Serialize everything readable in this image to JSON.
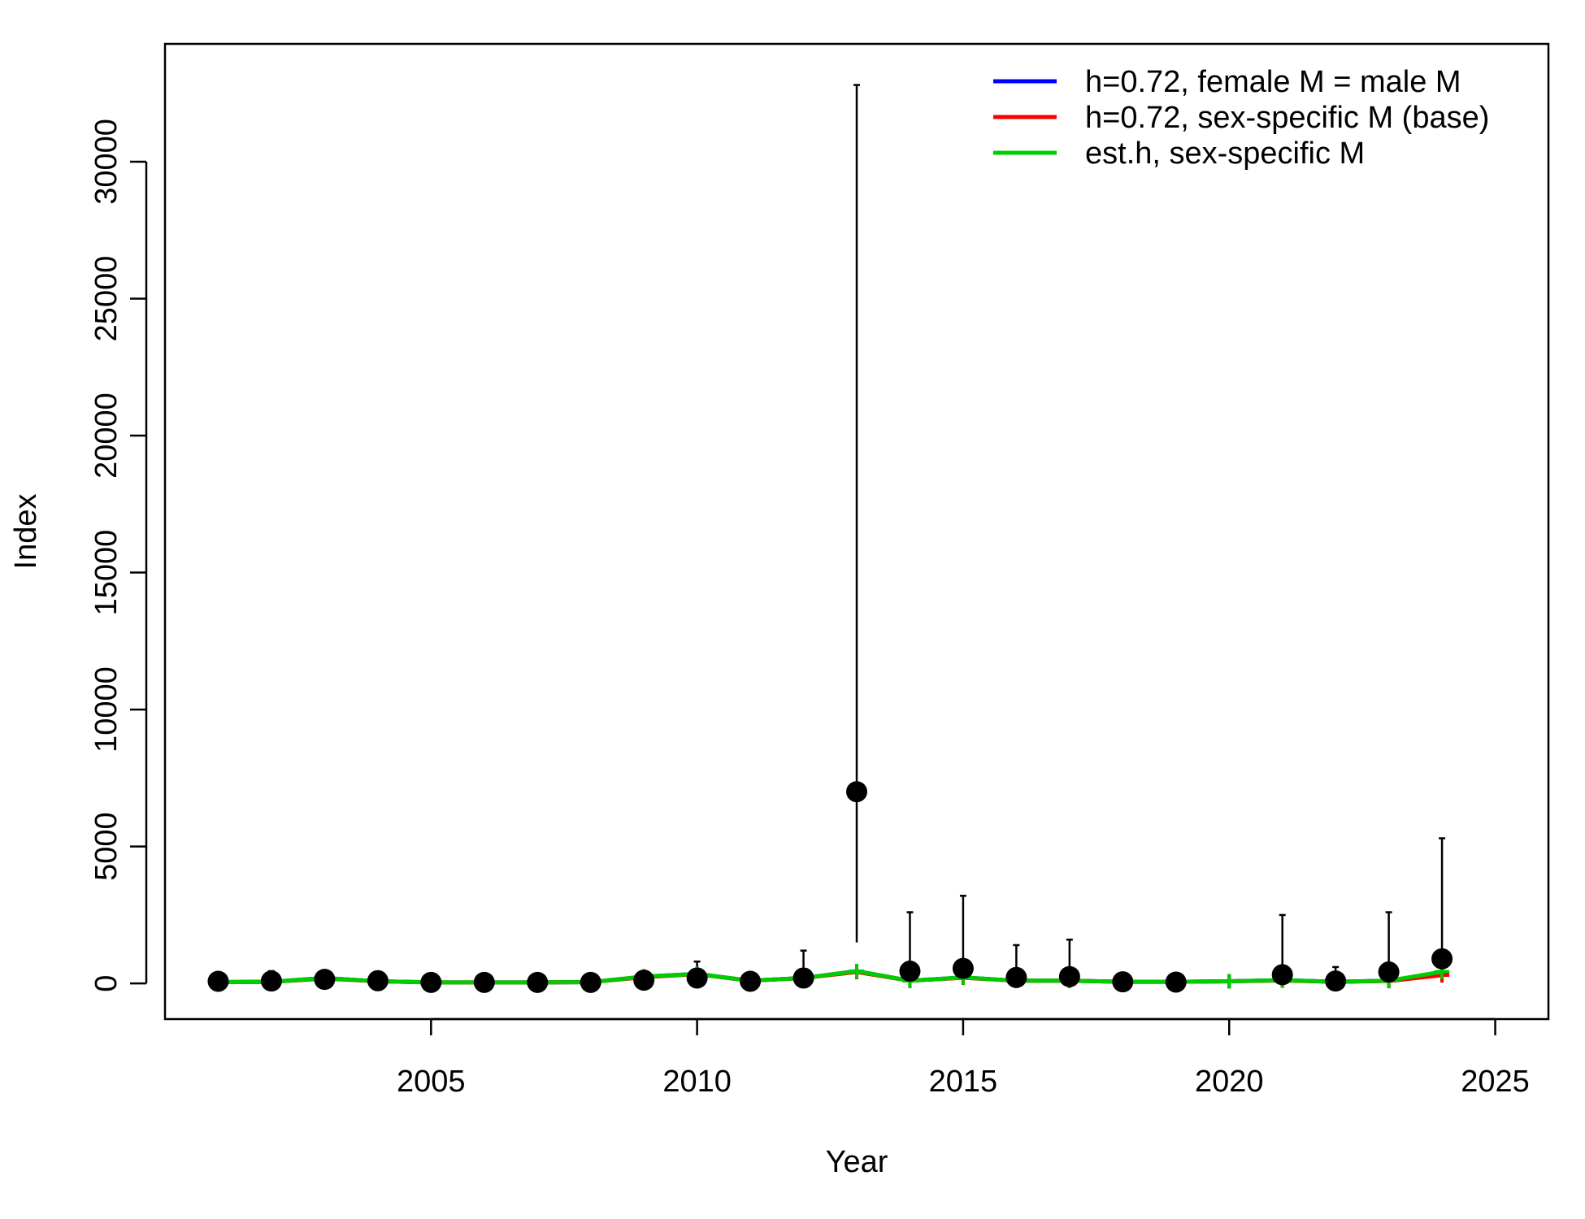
{
  "chart_data": {
    "type": "scatter",
    "xlabel": "Year",
    "ylabel": "Index",
    "xlim": [
      2000,
      2026
    ],
    "ylim": [
      -1300,
      34300
    ],
    "x_ticks": [
      2005,
      2010,
      2015,
      2020,
      2025
    ],
    "y_ticks": [
      0,
      5000,
      10000,
      15000,
      20000,
      25000,
      30000
    ],
    "legend_position": "top-right",
    "observed": {
      "color": "#000000",
      "points": [
        {
          "x": 2001,
          "y": 80,
          "lower": 5,
          "upper": 300
        },
        {
          "x": 2002,
          "y": 90,
          "lower": 5,
          "upper": 450
        },
        {
          "x": 2003,
          "y": 150,
          "lower": 10,
          "upper": 300
        },
        {
          "x": 2004,
          "y": 100,
          "lower": 5,
          "upper": 250
        },
        {
          "x": 2005,
          "y": 40,
          "lower": 5,
          "upper": 200
        },
        {
          "x": 2006,
          "y": 40,
          "lower": 5,
          "upper": 200
        },
        {
          "x": 2007,
          "y": 40,
          "lower": 5,
          "upper": 200
        },
        {
          "x": 2008,
          "y": 40,
          "lower": 5,
          "upper": 200
        },
        {
          "x": 2009,
          "y": 120,
          "lower": 10,
          "upper": 350
        },
        {
          "x": 2010,
          "y": 200,
          "lower": 10,
          "upper": 800
        },
        {
          "x": 2011,
          "y": 80,
          "lower": 5,
          "upper": 300
        },
        {
          "x": 2012,
          "y": 200,
          "lower": 10,
          "upper": 1200
        },
        {
          "x": 2013,
          "y": 7000,
          "lower": 1500,
          "upper": 32800
        },
        {
          "x": 2014,
          "y": 450,
          "lower": 50,
          "upper": 2600
        },
        {
          "x": 2015,
          "y": 550,
          "lower": 60,
          "upper": 3200
        },
        {
          "x": 2016,
          "y": 220,
          "lower": 30,
          "upper": 1400
        },
        {
          "x": 2017,
          "y": 250,
          "lower": 30,
          "upper": 1600
        },
        {
          "x": 2018,
          "y": 60,
          "lower": 5,
          "upper": 200
        },
        {
          "x": 2019,
          "y": 50,
          "lower": 5,
          "upper": 200
        },
        {
          "x": 2021,
          "y": 320,
          "lower": 40,
          "upper": 2500
        },
        {
          "x": 2022,
          "y": 90,
          "lower": 10,
          "upper": 600
        },
        {
          "x": 2023,
          "y": 420,
          "lower": 50,
          "upper": 2600
        },
        {
          "x": 2024,
          "y": 900,
          "lower": 100,
          "upper": 5300
        }
      ]
    },
    "series": [
      {
        "name": "h=0.72, female M = male M",
        "color": "#0000ff",
        "x": [
          2001,
          2002,
          2003,
          2004,
          2005,
          2006,
          2007,
          2008,
          2009,
          2010,
          2011,
          2012,
          2013,
          2014,
          2015,
          2016,
          2017,
          2018,
          2019,
          2020,
          2021,
          2022,
          2023,
          2024
        ],
        "y": [
          50,
          60,
          200,
          80,
          40,
          40,
          40,
          50,
          250,
          350,
          100,
          200,
          450,
          100,
          220,
          100,
          100,
          60,
          60,
          80,
          120,
          60,
          100,
          380
        ]
      },
      {
        "name": "h=0.72, sex-specific M (base)",
        "color": "#ff0000",
        "x": [
          2001,
          2002,
          2003,
          2004,
          2005,
          2006,
          2007,
          2008,
          2009,
          2010,
          2011,
          2012,
          2013,
          2014,
          2015,
          2016,
          2017,
          2018,
          2019,
          2020,
          2021,
          2022,
          2023,
          2024
        ],
        "y": [
          50,
          60,
          180,
          80,
          40,
          40,
          40,
          50,
          230,
          340,
          100,
          200,
          420,
          100,
          210,
          100,
          100,
          60,
          60,
          80,
          110,
          60,
          90,
          300
        ]
      },
      {
        "name": "est.h, sex-specific M",
        "color": "#00cd00",
        "x": [
          2001,
          2002,
          2003,
          2004,
          2005,
          2006,
          2007,
          2008,
          2009,
          2010,
          2011,
          2012,
          2013,
          2014,
          2015,
          2016,
          2017,
          2018,
          2019,
          2020,
          2021,
          2022,
          2023,
          2024
        ],
        "y": [
          50,
          60,
          200,
          80,
          40,
          40,
          40,
          50,
          250,
          350,
          100,
          200,
          450,
          100,
          220,
          100,
          100,
          60,
          60,
          80,
          120,
          60,
          100,
          430
        ]
      }
    ]
  }
}
